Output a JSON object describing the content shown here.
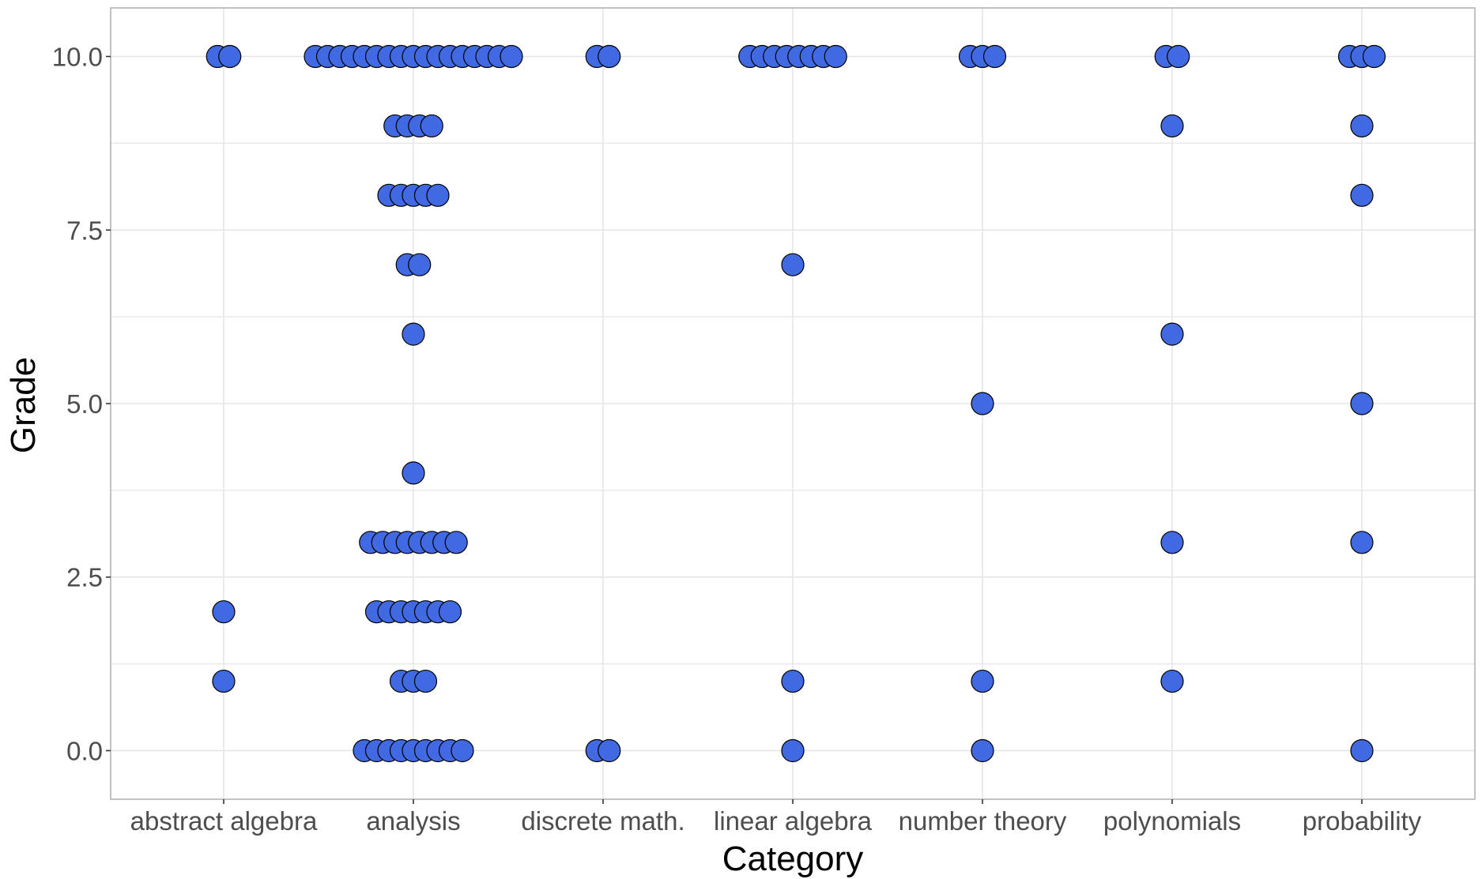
{
  "chart_data": {
    "type": "scatter",
    "subtype": "dotplot",
    "xlabel": "Category",
    "ylabel": "Grade",
    "categories": [
      "abstract algebra",
      "analysis",
      "discrete math.",
      "linear algebra",
      "number theory",
      "polynomials",
      "probability"
    ],
    "ylim": [
      -0.7,
      10.7
    ],
    "yticks": [
      0.0,
      2.5,
      5.0,
      7.5,
      10.0
    ],
    "ytick_labels": [
      "0.0",
      "2.5",
      "5.0",
      "7.5",
      "10.0"
    ],
    "grid": true,
    "legend": "none",
    "groups": [
      {
        "category": "abstract algebra",
        "counts": [
          {
            "grade": 10,
            "n": 2
          },
          {
            "grade": 2,
            "n": 1
          },
          {
            "grade": 1,
            "n": 1
          }
        ]
      },
      {
        "category": "analysis",
        "counts": [
          {
            "grade": 10,
            "n": 17
          },
          {
            "grade": 9,
            "n": 4
          },
          {
            "grade": 8,
            "n": 5
          },
          {
            "grade": 7,
            "n": 2
          },
          {
            "grade": 6,
            "n": 1
          },
          {
            "grade": 4,
            "n": 1
          },
          {
            "grade": 3,
            "n": 8
          },
          {
            "grade": 2,
            "n": 7
          },
          {
            "grade": 1,
            "n": 3
          },
          {
            "grade": 0,
            "n": 9
          }
        ]
      },
      {
        "category": "discrete math.",
        "counts": [
          {
            "grade": 10,
            "n": 2
          },
          {
            "grade": 0,
            "n": 2
          }
        ]
      },
      {
        "category": "linear algebra",
        "counts": [
          {
            "grade": 10,
            "n": 8
          },
          {
            "grade": 7,
            "n": 1
          },
          {
            "grade": 1,
            "n": 1
          },
          {
            "grade": 0,
            "n": 1
          }
        ]
      },
      {
        "category": "number theory",
        "counts": [
          {
            "grade": 10,
            "n": 3
          },
          {
            "grade": 5,
            "n": 1
          },
          {
            "grade": 1,
            "n": 1
          },
          {
            "grade": 0,
            "n": 1
          }
        ]
      },
      {
        "category": "polynomials",
        "counts": [
          {
            "grade": 10,
            "n": 2
          },
          {
            "grade": 9,
            "n": 1
          },
          {
            "grade": 6,
            "n": 1
          },
          {
            "grade": 3,
            "n": 1
          },
          {
            "grade": 1,
            "n": 1
          }
        ]
      },
      {
        "category": "probability",
        "counts": [
          {
            "grade": 10,
            "n": 3
          },
          {
            "grade": 9,
            "n": 1
          },
          {
            "grade": 8,
            "n": 1
          },
          {
            "grade": 5,
            "n": 1
          },
          {
            "grade": 3,
            "n": 1
          },
          {
            "grade": 0,
            "n": 1
          }
        ]
      }
    ],
    "colors": {
      "point_fill": "#4169E1",
      "point_stroke": "#000000",
      "grid": "#e6e6e6",
      "panel_border": "#b3b3b3",
      "tick_text": "#4d4d4d",
      "title_text": "#000000"
    }
  }
}
